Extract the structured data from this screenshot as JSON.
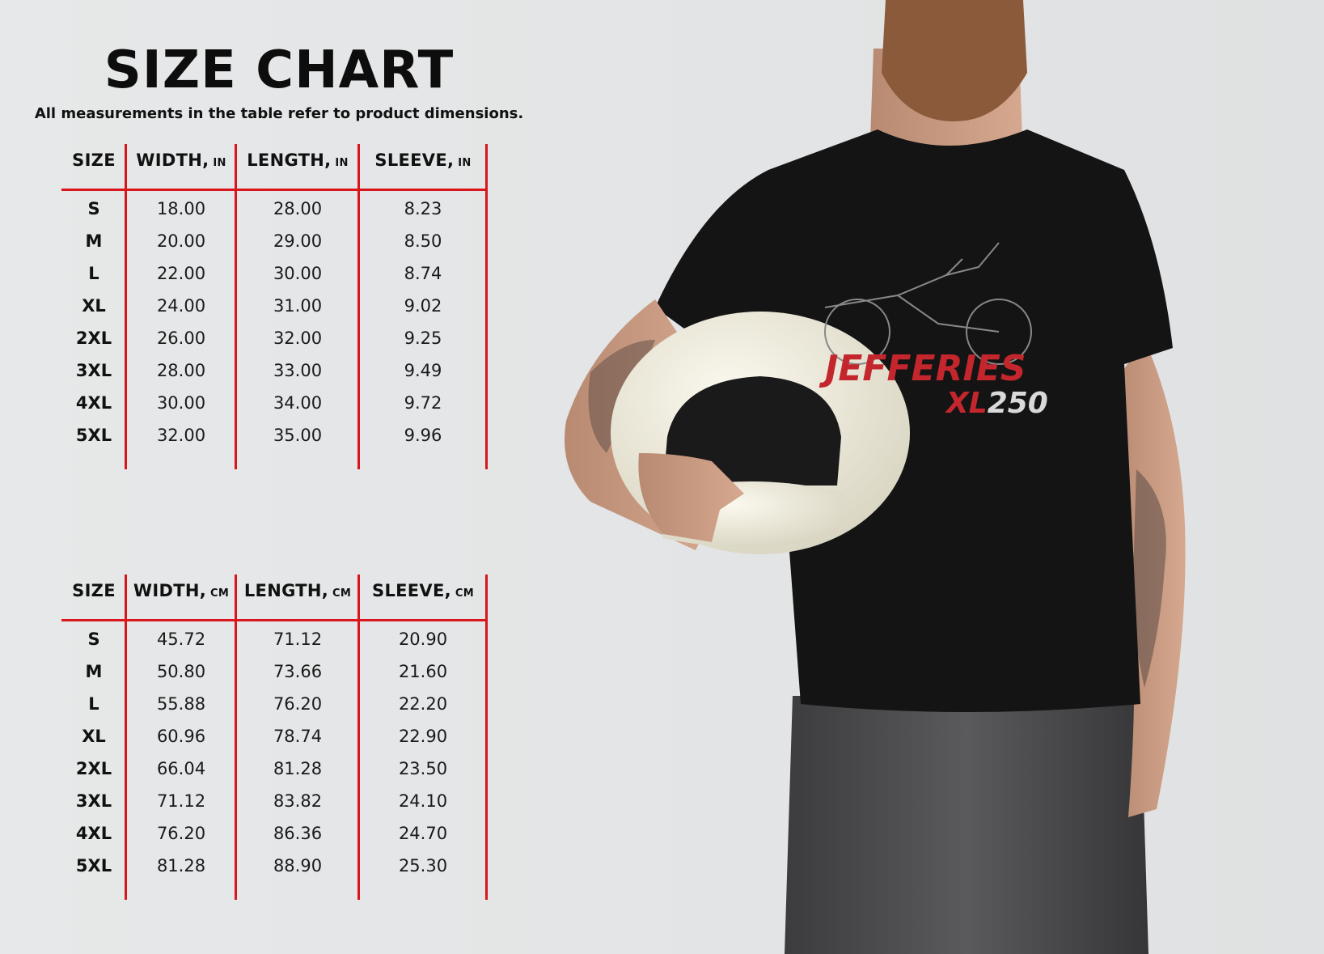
{
  "header": {
    "title": "SIZE CHART",
    "subtitle": "All measurements in the table refer to product dimensions."
  },
  "colors": {
    "accent": "#d8161c",
    "shirt": "#141414",
    "helmet": "#ece9dc"
  },
  "tables": [
    {
      "columns": [
        {
          "label": "SIZE",
          "unit": ""
        },
        {
          "label": "WIDTH,",
          "unit": "IN"
        },
        {
          "label": "LENGTH,",
          "unit": "IN"
        },
        {
          "label": "SLEEVE,",
          "unit": "IN"
        }
      ],
      "rows": [
        [
          "S",
          "18.00",
          "28.00",
          "8.23"
        ],
        [
          "M",
          "20.00",
          "29.00",
          "8.50"
        ],
        [
          "L",
          "22.00",
          "30.00",
          "8.74"
        ],
        [
          "XL",
          "24.00",
          "31.00",
          "9.02"
        ],
        [
          "2XL",
          "26.00",
          "32.00",
          "9.25"
        ],
        [
          "3XL",
          "28.00",
          "33.00",
          "9.49"
        ],
        [
          "4XL",
          "30.00",
          "34.00",
          "9.72"
        ],
        [
          "5XL",
          "32.00",
          "35.00",
          "9.96"
        ]
      ]
    },
    {
      "columns": [
        {
          "label": "SIZE",
          "unit": ""
        },
        {
          "label": "WIDTH,",
          "unit": "CM"
        },
        {
          "label": "LENGTH,",
          "unit": "CM"
        },
        {
          "label": "SLEEVE,",
          "unit": "CM"
        }
      ],
      "rows": [
        [
          "S",
          "45.72",
          "71.12",
          "20.90"
        ],
        [
          "M",
          "50.80",
          "73.66",
          "21.60"
        ],
        [
          "L",
          "55.88",
          "76.20",
          "22.20"
        ],
        [
          "XL",
          "60.96",
          "78.74",
          "22.90"
        ],
        [
          "2XL",
          "66.04",
          "81.28",
          "23.50"
        ],
        [
          "3XL",
          "71.12",
          "83.82",
          "24.10"
        ],
        [
          "4XL",
          "76.20",
          "86.36",
          "24.70"
        ],
        [
          "5XL",
          "81.28",
          "88.90",
          "25.30"
        ]
      ]
    }
  ],
  "shirt_print": {
    "brand": "JEFFERIES",
    "model_prefix": "XL",
    "model_number": "250"
  }
}
